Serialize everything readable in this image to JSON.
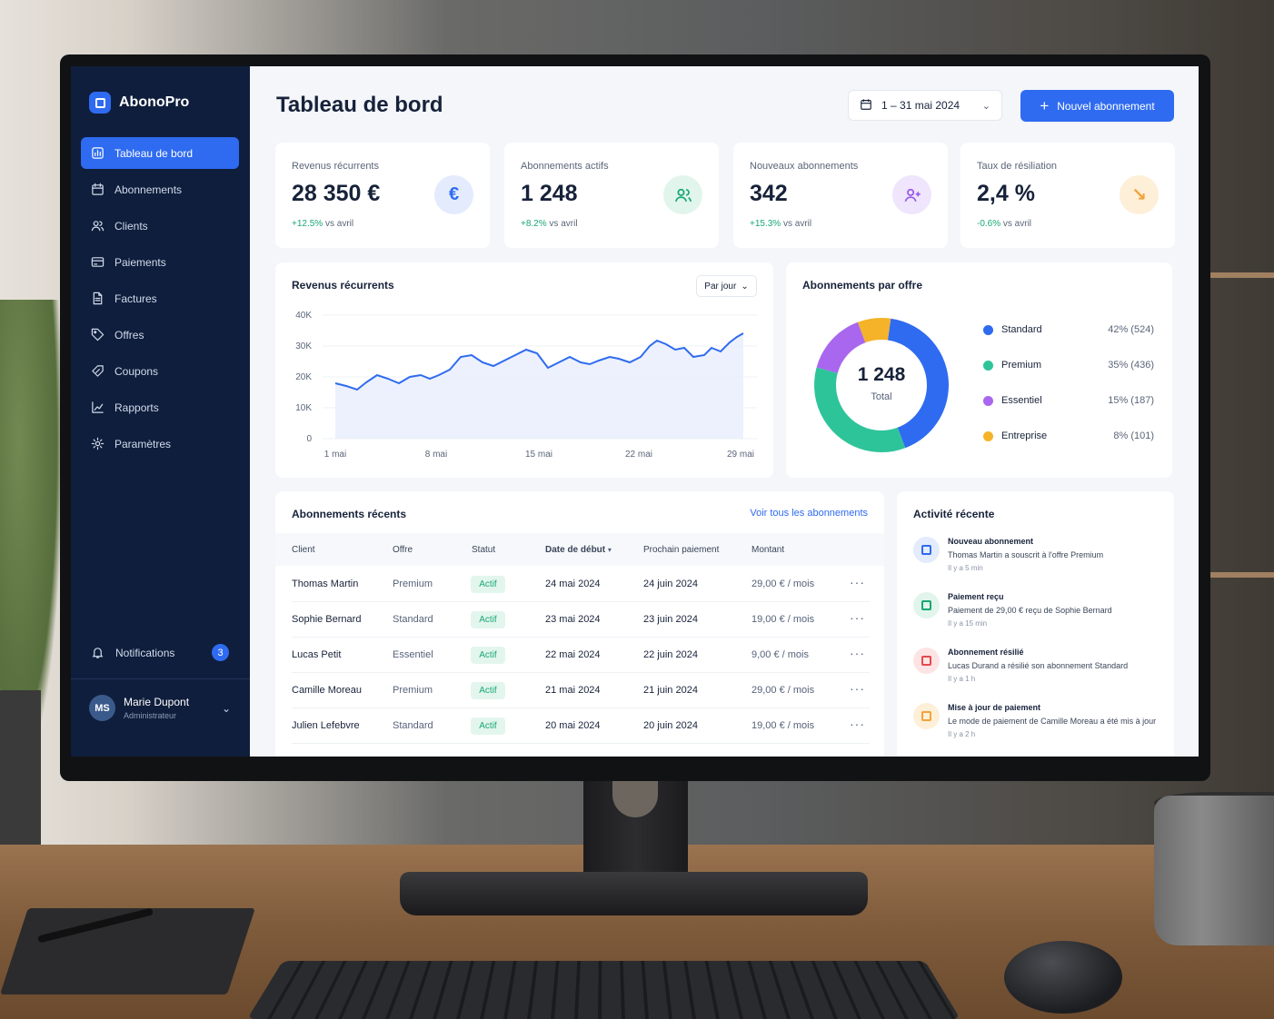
{
  "app": {
    "name": "AbonoPro"
  },
  "sidebar": {
    "items": [
      {
        "label": "Tableau de bord",
        "icon": "dashboard-icon",
        "active": true
      },
      {
        "label": "Abonnements",
        "icon": "calendar-icon"
      },
      {
        "label": "Clients",
        "icon": "users-icon"
      },
      {
        "label": "Paiements",
        "icon": "card-icon"
      },
      {
        "label": "Factures",
        "icon": "document-icon"
      },
      {
        "label": "Offres",
        "icon": "tag-icon"
      },
      {
        "label": "Coupons",
        "icon": "coupon-icon"
      },
      {
        "label": "Rapports",
        "icon": "chart-icon"
      },
      {
        "label": "Paramètres",
        "icon": "gear-icon"
      }
    ],
    "notifications": {
      "label": "Notifications",
      "count": "3"
    },
    "user": {
      "initials": "MS",
      "name": "Marie Dupont",
      "role": "Administrateur"
    }
  },
  "header": {
    "title": "Tableau de bord",
    "date_range": "1 – 31 mai 2024",
    "new_button": "Nouvel abonnement"
  },
  "kpis": [
    {
      "label": "Revenus récurrents",
      "value": "28 350 €",
      "delta": "+12.5%",
      "suffix": "vs avril",
      "icon": "euro-icon",
      "icon_glyph": "€",
      "color": "#2f6bf0",
      "bg": "#e3ebfd"
    },
    {
      "label": "Abonnements actifs",
      "value": "1 248",
      "delta": "+8.2%",
      "suffix": "vs avril",
      "icon": "users-icon",
      "color": "#19a774",
      "bg": "#e1f5ec"
    },
    {
      "label": "Nouveaux abonnements",
      "value": "342",
      "delta": "+15.3%",
      "suffix": "vs avril",
      "icon": "user-plus-icon",
      "color": "#9a5bea",
      "bg": "#efe5fc"
    },
    {
      "label": "Taux de résiliation",
      "value": "2,4 %",
      "delta": "-0.6%",
      "suffix": "vs avril",
      "icon": "trend-down-icon",
      "icon_glyph": "↘",
      "color": "#f2a33a",
      "bg": "#fdefd8"
    }
  ],
  "revenue_chart": {
    "title": "Revenus récurrents",
    "period_select": "Par jour",
    "y_ticks": [
      "40K",
      "30K",
      "20K",
      "10K",
      "0"
    ],
    "x_ticks": [
      "1 mai",
      "8 mai",
      "15 mai",
      "22 mai",
      "29 mai"
    ]
  },
  "donut": {
    "title": "Abonnements par offre",
    "center_value": "1 248",
    "center_label": "Total",
    "segments": [
      {
        "name": "Standard",
        "value": "42% (524)",
        "pct": 42,
        "color": "#2f6bf0"
      },
      {
        "name": "Premium",
        "value": "35% (436)",
        "pct": 35,
        "color": "#2ec49a"
      },
      {
        "name": "Essentiel",
        "value": "15% (187)",
        "pct": 15,
        "color": "#a867ee"
      },
      {
        "name": "Entreprise",
        "value": "8% (101)",
        "pct": 8,
        "color": "#f4b329"
      }
    ]
  },
  "recent_subscriptions": {
    "title": "Abonnements récents",
    "view_all": "Voir tous les abonnements",
    "columns": [
      "Client",
      "Offre",
      "Statut",
      "Date de début",
      "Prochain paiement",
      "Montant"
    ],
    "rows": [
      {
        "client": "Thomas Martin",
        "offer": "Premium",
        "status": "Actif",
        "start": "24 mai 2024",
        "next": "24 juin 2024",
        "amount": "29,00 € / mois"
      },
      {
        "client": "Sophie Bernard",
        "offer": "Standard",
        "status": "Actif",
        "start": "23 mai 2024",
        "next": "23 juin 2024",
        "amount": "19,00 € / mois"
      },
      {
        "client": "Lucas Petit",
        "offer": "Essentiel",
        "status": "Actif",
        "start": "22 mai 2024",
        "next": "22 juin 2024",
        "amount": "9,00 € / mois"
      },
      {
        "client": "Camille Moreau",
        "offer": "Premium",
        "status": "Actif",
        "start": "21 mai 2024",
        "next": "21 juin 2024",
        "amount": "29,00 € / mois"
      },
      {
        "client": "Julien Lefebvre",
        "offer": "Standard",
        "status": "Actif",
        "start": "20 mai 2024",
        "next": "20 juin 2024",
        "amount": "19,00 € / mois"
      }
    ]
  },
  "activity": {
    "title": "Activité récente",
    "items": [
      {
        "title": "Nouveau abonnement",
        "desc": "Thomas Martin a souscrit à l'offre Premium",
        "time": "Il y a 5 min",
        "icon": "subscription-icon",
        "color": "#2f6bf0",
        "bg": "#e3ebfd"
      },
      {
        "title": "Paiement reçu",
        "desc": "Paiement de 29,00 € reçu de Sophie Bernard",
        "time": "Il y a 15 min",
        "icon": "payment-icon",
        "color": "#19a774",
        "bg": "#e1f5ec"
      },
      {
        "title": "Abonnement résilié",
        "desc": "Lucas Durand a résilié son abonnement Standard",
        "time": "Il y a 1 h",
        "icon": "cancel-user-icon",
        "color": "#e5484d",
        "bg": "#fde4e4"
      },
      {
        "title": "Mise à jour de paiement",
        "desc": "Le mode de paiement de Camille Moreau a été mis à jour",
        "time": "Il y a 2 h",
        "icon": "update-icon",
        "color": "#f2a33a",
        "bg": "#fdefd8"
      }
    ]
  }
}
